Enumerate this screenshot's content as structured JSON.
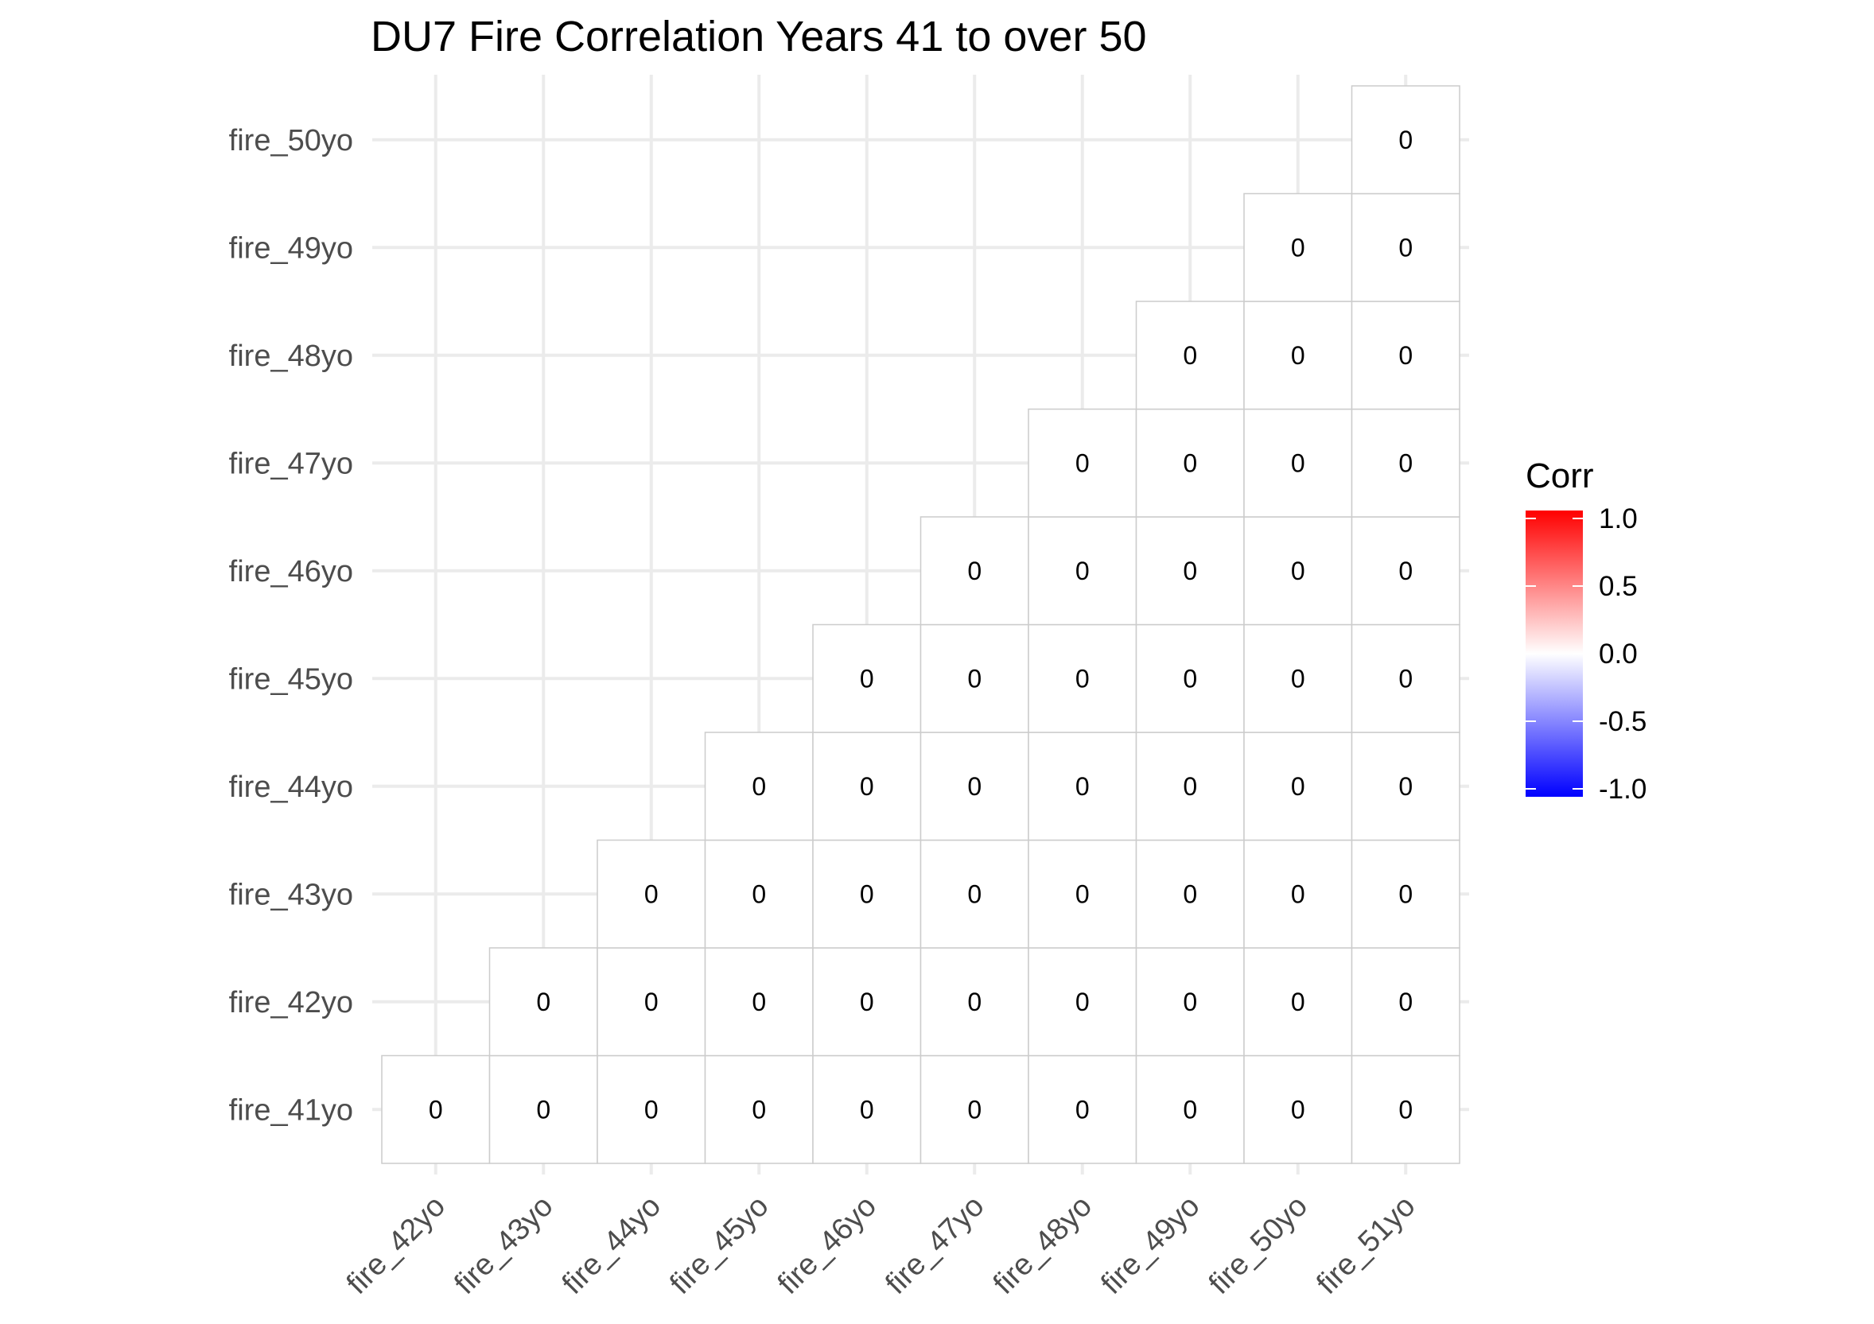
{
  "chart_data": {
    "type": "heatmap",
    "title": "DU7 Fire Correlation Years 41 to over 50",
    "x_categories": [
      "fire_42yo",
      "fire_43yo",
      "fire_44yo",
      "fire_45yo",
      "fire_46yo",
      "fire_47yo",
      "fire_48yo",
      "fire_49yo",
      "fire_50yo",
      "fire_51yo"
    ],
    "y_categories": [
      "fire_41yo",
      "fire_42yo",
      "fire_43yo",
      "fire_44yo",
      "fire_45yo",
      "fire_46yo",
      "fire_47yo",
      "fire_48yo",
      "fire_49yo",
      "fire_50yo"
    ],
    "matrix": [
      [
        0,
        0,
        0,
        0,
        0,
        0,
        0,
        0,
        0,
        0
      ],
      [
        null,
        0,
        0,
        0,
        0,
        0,
        0,
        0,
        0,
        0
      ],
      [
        null,
        null,
        0,
        0,
        0,
        0,
        0,
        0,
        0,
        0
      ],
      [
        null,
        null,
        null,
        0,
        0,
        0,
        0,
        0,
        0,
        0
      ],
      [
        null,
        null,
        null,
        null,
        0,
        0,
        0,
        0,
        0,
        0
      ],
      [
        null,
        null,
        null,
        null,
        null,
        0,
        0,
        0,
        0,
        0
      ],
      [
        null,
        null,
        null,
        null,
        null,
        null,
        0,
        0,
        0,
        0
      ],
      [
        null,
        null,
        null,
        null,
        null,
        null,
        null,
        0,
        0,
        0
      ],
      [
        null,
        null,
        null,
        null,
        null,
        null,
        null,
        null,
        0,
        0
      ],
      [
        null,
        null,
        null,
        null,
        null,
        null,
        null,
        null,
        null,
        0
      ]
    ],
    "legend": {
      "title": "Corr",
      "range": [
        -1,
        1
      ],
      "ticks": [
        1.0,
        0.5,
        0.0,
        -0.5,
        -1.0
      ],
      "tick_labels": [
        "1.0",
        "0.5",
        "0.0",
        "-0.5",
        "-1.0"
      ],
      "colors": {
        "low": "#0000ff",
        "mid": "#ffffff",
        "high": "#ff0000"
      },
      "placement": "right"
    },
    "grid": true
  }
}
